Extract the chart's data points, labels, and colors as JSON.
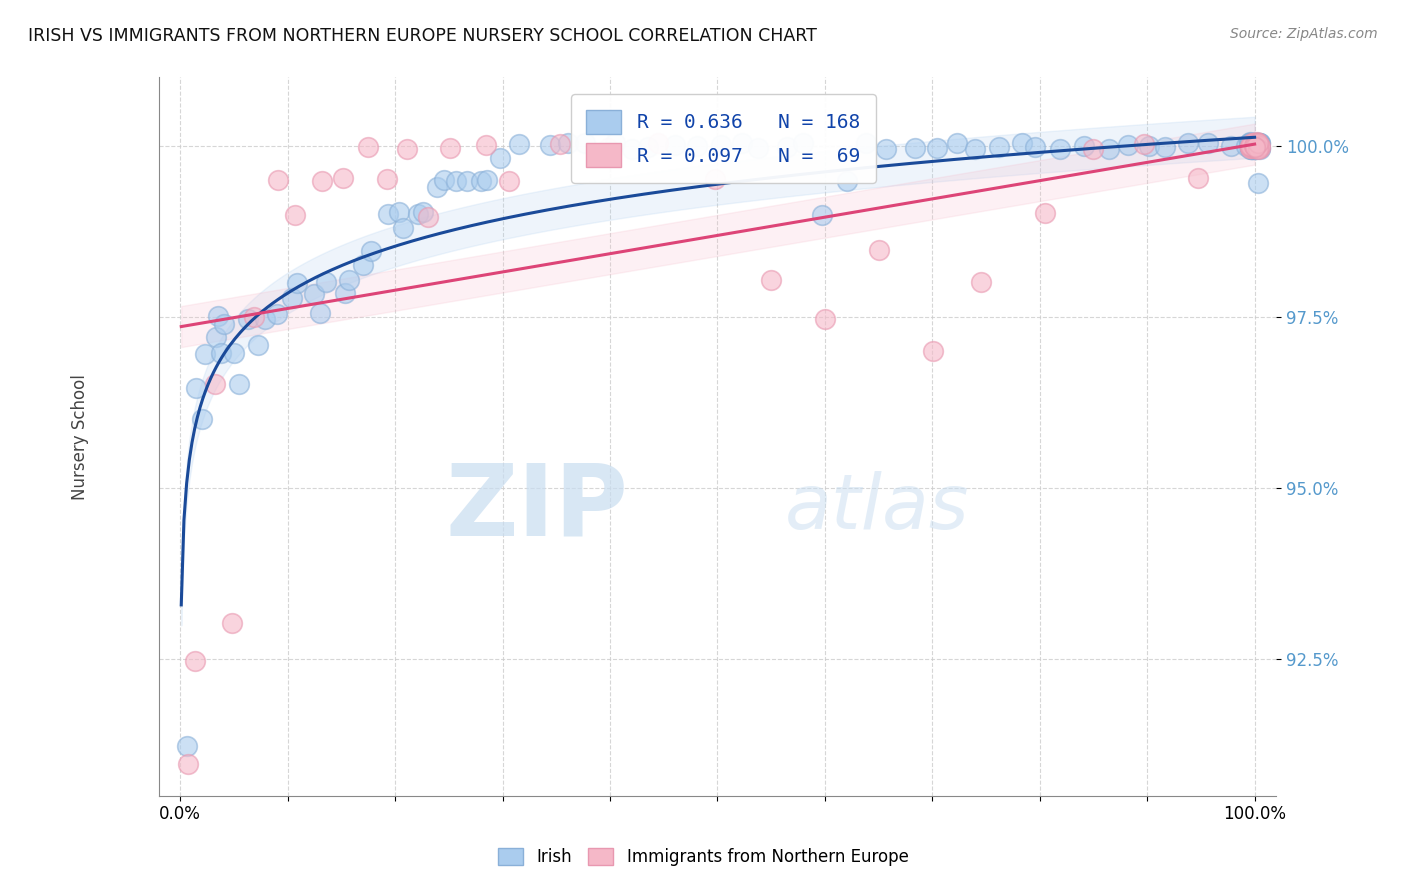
{
  "title": "IRISH VS IMMIGRANTS FROM NORTHERN EUROPE NURSERY SCHOOL CORRELATION CHART",
  "source_text": "Source: ZipAtlas.com",
  "ylabel": "Nursery School",
  "xlim": [
    -2.0,
    102.0
  ],
  "ylim": [
    90.5,
    101.0
  ],
  "yticks": [
    92.5,
    95.0,
    97.5,
    100.0
  ],
  "ytick_labels": [
    "92.5%",
    "95.0%",
    "97.5%",
    "100.0%"
  ],
  "legend_r_irish": "R = 0.636",
  "legend_n_irish": "N = 168",
  "legend_r_immig": "R = 0.097",
  "legend_n_immig": "N =  69",
  "watermark_zip": "ZIP",
  "watermark_atlas": "atlas",
  "irish_color": "#aaccee",
  "irish_edge_color": "#8ab0d8",
  "irish_line_color": "#1a4a99",
  "irish_confband_color": "#aaccee",
  "immig_color": "#f5b8c8",
  "immig_edge_color": "#e898b0",
  "immig_line_color": "#dd4477",
  "immig_confband_color": "#f5b8c8",
  "background_color": "#ffffff",
  "grid_color": "#cccccc",
  "right_tick_color": "#5599cc",
  "irish_scatter_x": [
    0.5,
    1.5,
    2.0,
    2.5,
    3.0,
    3.5,
    4.0,
    4.5,
    5.0,
    5.5,
    6.0,
    7.0,
    8.0,
    9.0,
    10.0,
    11.0,
    12.0,
    13.0,
    14.0,
    15.0,
    16.0,
    17.0,
    18.0,
    19.0,
    20.0,
    21.0,
    22.0,
    23.0,
    24.0,
    25.0,
    26.0,
    27.0,
    28.0,
    29.0,
    30.0,
    32.0,
    34.0,
    36.0,
    38.0,
    40.0,
    42.0,
    44.0,
    46.0,
    48.0,
    50.0,
    52.0,
    54.0,
    56.0,
    58.0,
    60.0,
    62.0,
    64.0,
    66.0,
    68.0,
    70.0,
    72.0,
    74.0,
    76.0,
    78.0,
    80.0,
    82.0,
    84.0,
    86.0,
    88.0,
    90.0,
    92.0,
    94.0,
    96.0,
    98.0,
    99.0,
    100.0,
    100.0,
    100.0,
    100.0,
    100.0,
    100.0,
    100.0,
    100.0,
    100.0,
    100.0,
    100.0,
    100.0,
    100.0,
    100.0,
    100.0,
    100.0,
    100.0,
    100.0,
    100.0,
    100.0,
    100.0,
    100.0,
    100.0,
    100.0,
    100.0,
    100.0,
    100.0,
    100.0,
    100.0,
    100.0,
    100.0,
    100.0,
    100.0,
    100.0,
    100.0,
    100.0,
    100.0,
    100.0,
    100.0,
    100.0,
    100.0,
    100.0,
    100.0,
    100.0,
    100.0,
    100.0,
    100.0,
    100.0,
    100.0,
    100.0,
    100.0,
    100.0,
    100.0,
    100.0,
    100.0,
    100.0,
    100.0,
    100.0,
    100.0,
    100.0,
    100.0,
    100.0,
    100.0,
    100.0,
    100.0,
    100.0,
    100.0,
    100.0,
    100.0,
    100.0,
    100.0,
    100.0,
    100.0,
    100.0,
    100.0,
    100.0,
    100.0,
    100.0,
    100.0,
    100.0,
    100.0,
    100.0,
    100.0,
    100.0,
    100.0,
    100.0,
    100.0,
    100.0,
    100.0,
    100.0,
    100.0,
    100.0,
    100.0,
    100.0,
    100.0,
    100.0,
    100.0,
    100.0
  ],
  "irish_scatter_y": [
    91.2,
    96.5,
    97.0,
    96.0,
    97.2,
    97.5,
    97.0,
    97.4,
    96.5,
    97.0,
    97.5,
    97.1,
    97.5,
    97.5,
    97.8,
    98.0,
    97.8,
    97.6,
    98.0,
    97.9,
    98.0,
    98.3,
    98.5,
    99.0,
    99.0,
    98.8,
    99.0,
    99.0,
    99.4,
    99.5,
    99.5,
    99.5,
    99.5,
    99.5,
    99.8,
    100.0,
    100.0,
    100.0,
    100.0,
    100.0,
    100.0,
    100.0,
    100.0,
    100.0,
    100.0,
    100.0,
    100.0,
    100.0,
    100.0,
    99.0,
    99.5,
    100.0,
    100.0,
    100.0,
    100.0,
    100.0,
    100.0,
    100.0,
    100.0,
    100.0,
    100.0,
    100.0,
    100.0,
    100.0,
    100.0,
    100.0,
    100.0,
    100.0,
    100.0,
    100.0,
    100.0,
    100.0,
    100.0,
    100.0,
    100.0,
    100.0,
    100.0,
    100.0,
    100.0,
    100.0,
    100.0,
    100.0,
    100.0,
    100.0,
    100.0,
    100.0,
    100.0,
    100.0,
    100.0,
    100.0,
    100.0,
    100.0,
    100.0,
    100.0,
    100.0,
    100.0,
    100.0,
    100.0,
    100.0,
    100.0,
    100.0,
    100.0,
    100.0,
    100.0,
    100.0,
    100.0,
    100.0,
    100.0,
    100.0,
    100.0,
    100.0,
    100.0,
    100.0,
    100.0,
    100.0,
    100.0,
    100.0,
    100.0,
    100.0,
    100.0,
    100.0,
    100.0,
    100.0,
    100.0,
    100.0,
    100.0,
    100.0,
    100.0,
    100.0,
    100.0,
    100.0,
    100.0,
    100.0,
    100.0,
    100.0,
    100.0,
    100.0,
    100.0,
    100.0,
    100.0,
    100.0,
    100.0,
    100.0,
    100.0,
    100.0,
    100.0,
    100.0,
    100.0,
    100.0,
    100.0,
    100.0,
    100.0,
    99.5,
    100.0,
    100.0,
    100.0,
    100.0,
    100.0,
    100.0,
    100.0,
    100.0,
    100.0,
    100.0,
    100.0,
    100.0,
    100.0,
    100.0,
    100.0
  ],
  "immig_scatter_x": [
    0.5,
    1.5,
    3.0,
    5.0,
    7.0,
    9.0,
    11.0,
    13.0,
    15.0,
    17.0,
    19.0,
    21.0,
    23.0,
    25.0,
    28.0,
    31.0,
    35.0,
    40.0,
    45.0,
    50.0,
    55.0,
    60.0,
    65.0,
    70.0,
    75.0,
    80.0,
    85.0,
    90.0,
    95.0,
    100.0,
    100.0,
    100.0,
    100.0,
    100.0,
    100.0,
    100.0,
    100.0,
    100.0,
    100.0,
    100.0,
    100.0,
    100.0,
    100.0,
    100.0,
    100.0,
    100.0,
    100.0,
    100.0,
    100.0,
    100.0,
    100.0,
    100.0,
    100.0,
    100.0,
    100.0,
    100.0,
    100.0,
    100.0,
    100.0,
    100.0,
    100.0,
    100.0,
    100.0,
    100.0,
    100.0,
    100.0,
    100.0,
    100.0,
    100.0
  ],
  "immig_scatter_y": [
    91.0,
    92.5,
    96.5,
    93.0,
    97.5,
    99.5,
    99.0,
    99.5,
    99.5,
    100.0,
    99.5,
    100.0,
    99.0,
    100.0,
    100.0,
    99.5,
    100.0,
    100.0,
    100.0,
    99.5,
    98.0,
    97.5,
    98.5,
    97.0,
    98.0,
    99.0,
    100.0,
    100.0,
    99.5,
    100.0,
    100.0,
    100.0,
    100.0,
    100.0,
    100.0,
    100.0,
    100.0,
    100.0,
    100.0,
    100.0,
    100.0,
    100.0,
    100.0,
    100.0,
    100.0,
    100.0,
    100.0,
    100.0,
    100.0,
    100.0,
    100.0,
    100.0,
    100.0,
    100.0,
    100.0,
    100.0,
    100.0,
    100.0,
    100.0,
    100.0,
    100.0,
    100.0,
    100.0,
    100.0,
    100.0,
    100.0,
    100.0,
    100.0,
    100.0
  ]
}
